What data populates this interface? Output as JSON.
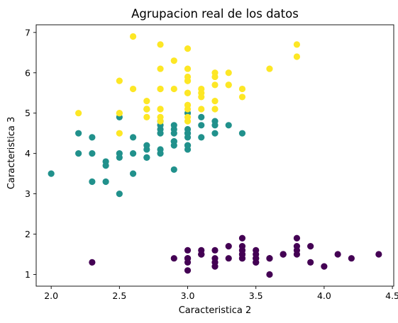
{
  "chart_data": {
    "type": "scatter",
    "title": "Agrupacion real de los datos",
    "xlabel": "Caracteristica 2",
    "ylabel": "Caracteristica 3",
    "xlim": [
      1.89,
      4.51
    ],
    "ylim": [
      0.71,
      7.19
    ],
    "xticks": [
      "2.0",
      "2.5",
      "3.0",
      "3.5",
      "4.0",
      "4.5"
    ],
    "yticks": [
      "1",
      "2",
      "3",
      "4",
      "5",
      "6",
      "7"
    ],
    "grid": false,
    "colors": {
      "group_0": "#440154",
      "group_1": "#21918c",
      "group_2": "#fde725"
    },
    "series": [
      {
        "group": 0,
        "points": [
          [
            3.5,
            1.4
          ],
          [
            3.0,
            1.4
          ],
          [
            3.2,
            1.3
          ],
          [
            3.1,
            1.5
          ],
          [
            3.6,
            1.4
          ],
          [
            3.9,
            1.7
          ],
          [
            3.4,
            1.4
          ],
          [
            3.4,
            1.5
          ],
          [
            2.9,
            1.4
          ],
          [
            3.1,
            1.5
          ],
          [
            3.7,
            1.5
          ],
          [
            3.4,
            1.6
          ],
          [
            3.0,
            1.4
          ],
          [
            3.0,
            1.1
          ],
          [
            4.0,
            1.2
          ],
          [
            4.4,
            1.5
          ],
          [
            3.9,
            1.3
          ],
          [
            3.5,
            1.4
          ],
          [
            3.8,
            1.7
          ],
          [
            3.8,
            1.5
          ],
          [
            3.4,
            1.7
          ],
          [
            3.7,
            1.5
          ],
          [
            3.6,
            1.0
          ],
          [
            3.3,
            1.7
          ],
          [
            3.4,
            1.9
          ],
          [
            3.0,
            1.6
          ],
          [
            3.4,
            1.6
          ],
          [
            3.5,
            1.5
          ],
          [
            3.4,
            1.4
          ],
          [
            3.2,
            1.6
          ],
          [
            3.1,
            1.6
          ],
          [
            3.4,
            1.5
          ],
          [
            4.1,
            1.5
          ],
          [
            4.2,
            1.4
          ],
          [
            3.1,
            1.5
          ],
          [
            3.2,
            1.2
          ],
          [
            3.5,
            1.3
          ],
          [
            3.6,
            1.4
          ],
          [
            3.0,
            1.3
          ],
          [
            3.4,
            1.5
          ],
          [
            3.5,
            1.3
          ],
          [
            2.3,
            1.3
          ],
          [
            3.2,
            1.3
          ],
          [
            3.5,
            1.6
          ],
          [
            3.8,
            1.9
          ],
          [
            3.0,
            1.4
          ],
          [
            3.8,
            1.6
          ],
          [
            3.2,
            1.4
          ],
          [
            3.7,
            1.5
          ],
          [
            3.3,
            1.4
          ]
        ]
      },
      {
        "group": 1,
        "points": [
          [
            3.2,
            4.7
          ],
          [
            3.2,
            4.5
          ],
          [
            3.1,
            4.9
          ],
          [
            2.3,
            4.0
          ],
          [
            2.8,
            4.6
          ],
          [
            2.8,
            4.5
          ],
          [
            3.3,
            4.7
          ],
          [
            2.4,
            3.3
          ],
          [
            2.9,
            4.6
          ],
          [
            2.7,
            3.9
          ],
          [
            2.0,
            3.5
          ],
          [
            3.0,
            4.2
          ],
          [
            2.2,
            4.0
          ],
          [
            2.9,
            4.7
          ],
          [
            2.9,
            3.6
          ],
          [
            3.1,
            4.4
          ],
          [
            3.0,
            4.5
          ],
          [
            2.7,
            4.1
          ],
          [
            2.2,
            4.5
          ],
          [
            2.5,
            3.9
          ],
          [
            3.2,
            4.8
          ],
          [
            2.8,
            4.0
          ],
          [
            2.5,
            4.9
          ],
          [
            2.8,
            4.7
          ],
          [
            2.9,
            4.3
          ],
          [
            3.0,
            4.4
          ],
          [
            2.8,
            4.8
          ],
          [
            3.0,
            5.0
          ],
          [
            2.9,
            4.5
          ],
          [
            2.6,
            3.5
          ],
          [
            2.4,
            3.8
          ],
          [
            2.4,
            3.7
          ],
          [
            2.7,
            3.9
          ],
          [
            2.7,
            5.1
          ],
          [
            3.0,
            4.5
          ],
          [
            3.4,
            4.5
          ],
          [
            3.1,
            4.7
          ],
          [
            2.3,
            4.4
          ],
          [
            3.0,
            4.1
          ],
          [
            2.5,
            4.0
          ],
          [
            2.6,
            4.4
          ],
          [
            3.0,
            4.6
          ],
          [
            2.6,
            4.0
          ],
          [
            2.3,
            3.3
          ],
          [
            2.7,
            4.2
          ],
          [
            3.0,
            4.2
          ],
          [
            2.9,
            4.2
          ],
          [
            2.9,
            4.3
          ],
          [
            2.5,
            3.0
          ],
          [
            2.8,
            4.1
          ]
        ]
      },
      {
        "group": 2,
        "points": [
          [
            3.3,
            6.0
          ],
          [
            2.7,
            5.1
          ],
          [
            3.0,
            5.9
          ],
          [
            2.9,
            5.6
          ],
          [
            3.0,
            5.8
          ],
          [
            3.0,
            6.6
          ],
          [
            2.5,
            4.5
          ],
          [
            2.9,
            6.3
          ],
          [
            2.5,
            5.8
          ],
          [
            3.6,
            6.1
          ],
          [
            3.2,
            5.1
          ],
          [
            2.7,
            5.3
          ],
          [
            3.0,
            5.5
          ],
          [
            2.5,
            5.0
          ],
          [
            2.8,
            5.1
          ],
          [
            3.2,
            5.3
          ],
          [
            3.0,
            5.5
          ],
          [
            3.8,
            6.7
          ],
          [
            2.6,
            6.9
          ],
          [
            2.2,
            5.0
          ],
          [
            3.2,
            5.7
          ],
          [
            2.8,
            4.9
          ],
          [
            2.8,
            6.7
          ],
          [
            2.7,
            4.9
          ],
          [
            3.3,
            5.7
          ],
          [
            3.2,
            6.0
          ],
          [
            2.8,
            4.8
          ],
          [
            3.0,
            4.9
          ],
          [
            2.8,
            5.6
          ],
          [
            3.0,
            5.8
          ],
          [
            2.8,
            6.1
          ],
          [
            3.8,
            6.4
          ],
          [
            2.8,
            5.6
          ],
          [
            2.8,
            5.1
          ],
          [
            2.6,
            5.6
          ],
          [
            3.0,
            6.1
          ],
          [
            3.4,
            5.6
          ],
          [
            3.1,
            5.5
          ],
          [
            3.0,
            4.8
          ],
          [
            3.1,
            5.4
          ],
          [
            3.1,
            5.6
          ],
          [
            3.1,
            5.1
          ],
          [
            2.7,
            5.1
          ],
          [
            3.2,
            5.9
          ],
          [
            3.3,
            5.7
          ],
          [
            3.0,
            5.2
          ],
          [
            2.5,
            5.0
          ],
          [
            3.0,
            5.2
          ],
          [
            3.4,
            5.4
          ],
          [
            3.0,
            5.1
          ]
        ]
      }
    ]
  }
}
